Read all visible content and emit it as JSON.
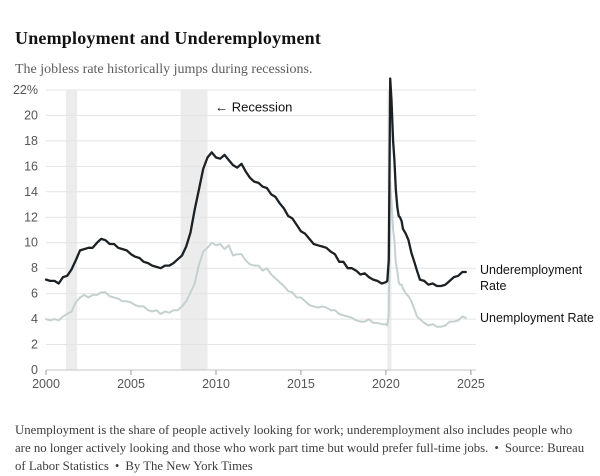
{
  "header": {
    "title": "Unemployment and Underemployment",
    "subtitle": "The jobless rate historically jumps during recessions."
  },
  "footer": {
    "note": "Unemployment is the share of people actively looking for work; underemployment also includes people who are no longer actively looking and those who work part time but would prefer full-time jobs.",
    "separator": "•",
    "source": "Source: Bureau of Labor Statistics",
    "byline": "By The New York Times"
  },
  "chart_data": {
    "type": "line",
    "title": "Unemployment and Underemployment",
    "xlabel": "",
    "ylabel": "",
    "xlim": [
      2000,
      2025.3
    ],
    "ylim": [
      0,
      22
    ],
    "grid": "horizontal",
    "legend_position": "right-annotated",
    "x_ticks": [
      2000,
      2005,
      2010,
      2015,
      2020,
      2025
    ],
    "y_ticks": [
      0,
      2,
      4,
      6,
      8,
      10,
      12,
      14,
      16,
      18,
      20,
      22
    ],
    "y_top_label": "22%",
    "annotation": {
      "text": "← Recession",
      "x": 2009.95,
      "y": 20.3
    },
    "recessions": [
      [
        2001.17,
        2001.83
      ],
      [
        2007.92,
        2009.5
      ],
      [
        2020.08,
        2020.33
      ]
    ],
    "colors": {
      "underemployment": "#1c2126",
      "unemployment": "#c5d1d0",
      "recession_band": "#ececec",
      "grid": "#e4e4e4",
      "baseline": "#c6c6c6",
      "axis_text": "#565656"
    },
    "series": [
      {
        "name": "Unemployment Rate",
        "color_key": "unemployment",
        "stroke_width": 2,
        "points": [
          [
            2000.0,
            4.0
          ],
          [
            2000.25,
            3.9
          ],
          [
            2000.5,
            4.0
          ],
          [
            2000.75,
            3.9
          ],
          [
            2001.0,
            4.2
          ],
          [
            2001.25,
            4.4
          ],
          [
            2001.5,
            4.6
          ],
          [
            2001.75,
            5.3
          ],
          [
            2002.0,
            5.7
          ],
          [
            2002.25,
            5.9
          ],
          [
            2002.5,
            5.7
          ],
          [
            2002.75,
            5.9
          ],
          [
            2003.0,
            5.9
          ],
          [
            2003.25,
            6.1
          ],
          [
            2003.5,
            6.1
          ],
          [
            2003.75,
            5.8
          ],
          [
            2004.0,
            5.7
          ],
          [
            2004.25,
            5.6
          ],
          [
            2004.5,
            5.4
          ],
          [
            2004.75,
            5.4
          ],
          [
            2005.0,
            5.3
          ],
          [
            2005.25,
            5.1
          ],
          [
            2005.5,
            5.0
          ],
          [
            2005.75,
            5.0
          ],
          [
            2006.0,
            4.7
          ],
          [
            2006.25,
            4.6
          ],
          [
            2006.5,
            4.7
          ],
          [
            2006.75,
            4.4
          ],
          [
            2007.0,
            4.6
          ],
          [
            2007.25,
            4.5
          ],
          [
            2007.5,
            4.7
          ],
          [
            2007.75,
            4.7
          ],
          [
            2008.0,
            5.0
          ],
          [
            2008.25,
            5.4
          ],
          [
            2008.5,
            6.1
          ],
          [
            2008.75,
            6.8
          ],
          [
            2009.0,
            8.3
          ],
          [
            2009.25,
            9.3
          ],
          [
            2009.5,
            9.6
          ],
          [
            2009.75,
            10.0
          ],
          [
            2010.0,
            9.8
          ],
          [
            2010.25,
            9.9
          ],
          [
            2010.5,
            9.5
          ],
          [
            2010.75,
            9.8
          ],
          [
            2011.0,
            9.0
          ],
          [
            2011.25,
            9.1
          ],
          [
            2011.5,
            9.1
          ],
          [
            2011.75,
            8.6
          ],
          [
            2012.0,
            8.3
          ],
          [
            2012.25,
            8.2
          ],
          [
            2012.5,
            8.2
          ],
          [
            2012.75,
            7.8
          ],
          [
            2013.0,
            8.0
          ],
          [
            2013.25,
            7.5
          ],
          [
            2013.5,
            7.2
          ],
          [
            2013.75,
            6.9
          ],
          [
            2014.0,
            6.6
          ],
          [
            2014.25,
            6.2
          ],
          [
            2014.5,
            6.1
          ],
          [
            2014.75,
            5.7
          ],
          [
            2015.0,
            5.7
          ],
          [
            2015.25,
            5.4
          ],
          [
            2015.5,
            5.1
          ],
          [
            2015.75,
            5.0
          ],
          [
            2016.0,
            4.9
          ],
          [
            2016.25,
            5.0
          ],
          [
            2016.5,
            4.9
          ],
          [
            2016.75,
            4.7
          ],
          [
            2017.0,
            4.7
          ],
          [
            2017.25,
            4.4
          ],
          [
            2017.5,
            4.3
          ],
          [
            2017.75,
            4.2
          ],
          [
            2018.0,
            4.1
          ],
          [
            2018.25,
            3.9
          ],
          [
            2018.5,
            3.8
          ],
          [
            2018.75,
            3.8
          ],
          [
            2019.0,
            4.0
          ],
          [
            2019.25,
            3.7
          ],
          [
            2019.5,
            3.7
          ],
          [
            2019.75,
            3.6
          ],
          [
            2020.0,
            3.6
          ],
          [
            2020.08,
            3.5
          ],
          [
            2020.17,
            4.4
          ],
          [
            2020.25,
            14.7
          ],
          [
            2020.33,
            13.2
          ],
          [
            2020.42,
            11.0
          ],
          [
            2020.5,
            10.2
          ],
          [
            2020.58,
            8.4
          ],
          [
            2020.67,
            7.8
          ],
          [
            2020.75,
            6.9
          ],
          [
            2020.83,
            6.7
          ],
          [
            2020.92,
            6.7
          ],
          [
            2021.0,
            6.4
          ],
          [
            2021.17,
            6.0
          ],
          [
            2021.33,
            5.8
          ],
          [
            2021.5,
            5.4
          ],
          [
            2021.67,
            4.8
          ],
          [
            2021.83,
            4.2
          ],
          [
            2022.0,
            4.0
          ],
          [
            2022.25,
            3.7
          ],
          [
            2022.5,
            3.5
          ],
          [
            2022.75,
            3.6
          ],
          [
            2023.0,
            3.4
          ],
          [
            2023.25,
            3.4
          ],
          [
            2023.5,
            3.5
          ],
          [
            2023.75,
            3.8
          ],
          [
            2024.0,
            3.8
          ],
          [
            2024.25,
            3.9
          ],
          [
            2024.5,
            4.2
          ],
          [
            2024.7,
            4.1
          ]
        ]
      },
      {
        "name": "Underemployment Rate",
        "color_key": "underemployment",
        "stroke_width": 2.3,
        "points": [
          [
            2000.0,
            7.1
          ],
          [
            2000.25,
            7.0
          ],
          [
            2000.5,
            7.0
          ],
          [
            2000.75,
            6.8
          ],
          [
            2001.0,
            7.3
          ],
          [
            2001.25,
            7.4
          ],
          [
            2001.5,
            7.9
          ],
          [
            2001.75,
            8.6
          ],
          [
            2002.0,
            9.4
          ],
          [
            2002.25,
            9.5
          ],
          [
            2002.5,
            9.6
          ],
          [
            2002.75,
            9.6
          ],
          [
            2003.0,
            10.0
          ],
          [
            2003.25,
            10.3
          ],
          [
            2003.5,
            10.2
          ],
          [
            2003.75,
            9.9
          ],
          [
            2004.0,
            9.9
          ],
          [
            2004.25,
            9.6
          ],
          [
            2004.5,
            9.5
          ],
          [
            2004.75,
            9.4
          ],
          [
            2005.0,
            9.1
          ],
          [
            2005.25,
            8.9
          ],
          [
            2005.5,
            8.8
          ],
          [
            2005.75,
            8.5
          ],
          [
            2006.0,
            8.4
          ],
          [
            2006.25,
            8.2
          ],
          [
            2006.5,
            8.1
          ],
          [
            2006.75,
            8.0
          ],
          [
            2007.0,
            8.2
          ],
          [
            2007.25,
            8.2
          ],
          [
            2007.5,
            8.4
          ],
          [
            2007.75,
            8.7
          ],
          [
            2008.0,
            9.0
          ],
          [
            2008.25,
            9.7
          ],
          [
            2008.5,
            10.8
          ],
          [
            2008.75,
            12.6
          ],
          [
            2009.0,
            14.2
          ],
          [
            2009.25,
            15.8
          ],
          [
            2009.5,
            16.7
          ],
          [
            2009.75,
            17.1
          ],
          [
            2010.0,
            16.7
          ],
          [
            2010.25,
            16.6
          ],
          [
            2010.5,
            16.9
          ],
          [
            2010.75,
            16.5
          ],
          [
            2011.0,
            16.1
          ],
          [
            2011.25,
            15.9
          ],
          [
            2011.5,
            16.2
          ],
          [
            2011.75,
            15.6
          ],
          [
            2012.0,
            15.1
          ],
          [
            2012.25,
            14.8
          ],
          [
            2012.5,
            14.7
          ],
          [
            2012.75,
            14.4
          ],
          [
            2013.0,
            14.3
          ],
          [
            2013.25,
            13.8
          ],
          [
            2013.5,
            13.6
          ],
          [
            2013.75,
            13.1
          ],
          [
            2014.0,
            12.7
          ],
          [
            2014.25,
            12.1
          ],
          [
            2014.5,
            11.9
          ],
          [
            2014.75,
            11.4
          ],
          [
            2015.0,
            10.9
          ],
          [
            2015.25,
            10.7
          ],
          [
            2015.5,
            10.3
          ],
          [
            2015.75,
            9.9
          ],
          [
            2016.0,
            9.8
          ],
          [
            2016.25,
            9.7
          ],
          [
            2016.5,
            9.6
          ],
          [
            2016.75,
            9.3
          ],
          [
            2017.0,
            9.1
          ],
          [
            2017.25,
            8.5
          ],
          [
            2017.5,
            8.5
          ],
          [
            2017.75,
            8.0
          ],
          [
            2018.0,
            8.0
          ],
          [
            2018.25,
            7.8
          ],
          [
            2018.5,
            7.5
          ],
          [
            2018.75,
            7.6
          ],
          [
            2019.0,
            7.3
          ],
          [
            2019.25,
            7.1
          ],
          [
            2019.5,
            7.0
          ],
          [
            2019.75,
            6.8
          ],
          [
            2020.0,
            6.9
          ],
          [
            2020.08,
            7.0
          ],
          [
            2020.17,
            8.7
          ],
          [
            2020.25,
            22.9
          ],
          [
            2020.33,
            21.2
          ],
          [
            2020.42,
            18.0
          ],
          [
            2020.5,
            16.5
          ],
          [
            2020.58,
            14.2
          ],
          [
            2020.67,
            12.8
          ],
          [
            2020.75,
            12.1
          ],
          [
            2020.83,
            12.0
          ],
          [
            2020.92,
            11.7
          ],
          [
            2021.0,
            11.1
          ],
          [
            2021.17,
            10.7
          ],
          [
            2021.33,
            10.2
          ],
          [
            2021.5,
            9.2
          ],
          [
            2021.67,
            8.5
          ],
          [
            2021.83,
            7.8
          ],
          [
            2022.0,
            7.1
          ],
          [
            2022.25,
            7.0
          ],
          [
            2022.5,
            6.7
          ],
          [
            2022.75,
            6.8
          ],
          [
            2023.0,
            6.6
          ],
          [
            2023.25,
            6.6
          ],
          [
            2023.5,
            6.7
          ],
          [
            2023.75,
            7.0
          ],
          [
            2024.0,
            7.3
          ],
          [
            2024.25,
            7.4
          ],
          [
            2024.5,
            7.7
          ],
          [
            2024.7,
            7.7
          ]
        ]
      }
    ]
  }
}
